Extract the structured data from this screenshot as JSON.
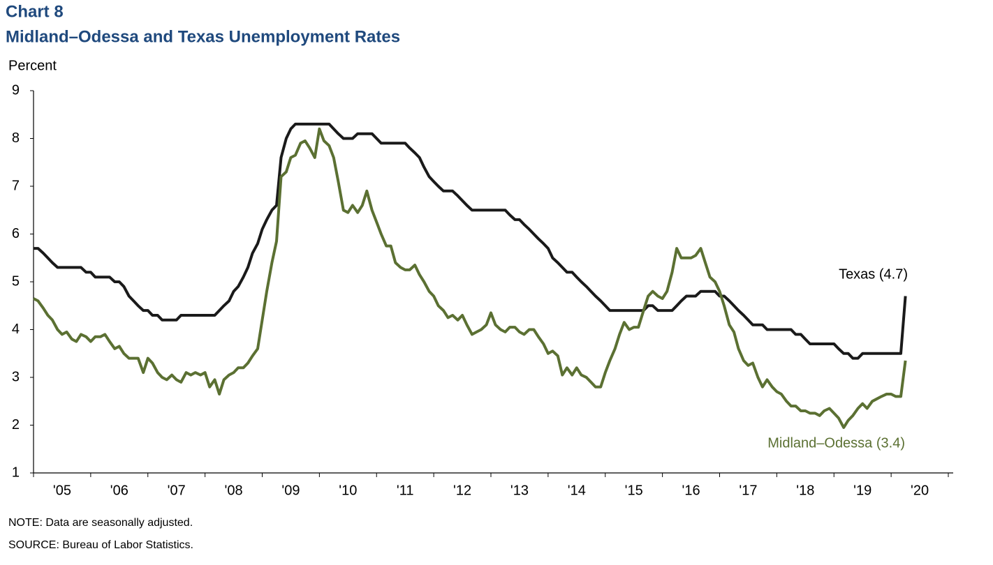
{
  "chart_data": {
    "type": "line",
    "title": "Chart 8",
    "subtitle": "Midland–Odessa and Texas Unemployment Rates",
    "y_label": "Percent",
    "notes": [
      "NOTE: Data are seasonally adjusted.",
      "SOURCE: Bureau of Labor Statistics."
    ],
    "annotations": [
      "Texas (4.7)",
      "Midland–Odessa (3.4)"
    ],
    "ylim": [
      1,
      9
    ],
    "yticks": [
      1,
      2,
      3,
      4,
      5,
      6,
      7,
      8,
      9
    ],
    "xlim": [
      2005,
      2021
    ],
    "xticks": [
      2005,
      2006,
      2007,
      2008,
      2009,
      2010,
      2011,
      2012,
      2013,
      2014,
      2015,
      2016,
      2017,
      2018,
      2019,
      2020,
      2021
    ],
    "xtick_labels": [
      {
        "value": 2005.5,
        "label": "'05"
      },
      {
        "value": 2006.5,
        "label": "'06"
      },
      {
        "value": 2007.5,
        "label": "'07"
      },
      {
        "value": 2008.5,
        "label": "'08"
      },
      {
        "value": 2009.5,
        "label": "'09"
      },
      {
        "value": 2010.5,
        "label": "'10"
      },
      {
        "value": 2011.5,
        "label": "'11"
      },
      {
        "value": 2012.5,
        "label": "'12"
      },
      {
        "value": 2013.5,
        "label": "'13"
      },
      {
        "value": 2014.5,
        "label": "'14"
      },
      {
        "value": 2015.5,
        "label": "'15"
      },
      {
        "value": 2016.5,
        "label": "'16"
      },
      {
        "value": 2017.5,
        "label": "'17"
      },
      {
        "value": 2018.5,
        "label": "'18"
      },
      {
        "value": 2019.5,
        "label": "'19"
      },
      {
        "value": 2020.5,
        "label": "'20"
      }
    ],
    "grid": false,
    "x": [
      2005.0,
      2005.08,
      2005.17,
      2005.25,
      2005.33,
      2005.42,
      2005.5,
      2005.58,
      2005.67,
      2005.75,
      2005.83,
      2005.92,
      2006.0,
      2006.08,
      2006.17,
      2006.25,
      2006.33,
      2006.42,
      2006.5,
      2006.58,
      2006.67,
      2006.75,
      2006.83,
      2006.92,
      2007.0,
      2007.08,
      2007.17,
      2007.25,
      2007.33,
      2007.42,
      2007.5,
      2007.58,
      2007.67,
      2007.75,
      2007.83,
      2007.92,
      2008.0,
      2008.08,
      2008.17,
      2008.25,
      2008.33,
      2008.42,
      2008.5,
      2008.58,
      2008.67,
      2008.75,
      2008.83,
      2008.92,
      2009.0,
      2009.08,
      2009.17,
      2009.25,
      2009.33,
      2009.42,
      2009.5,
      2009.58,
      2009.67,
      2009.75,
      2009.83,
      2009.92,
      2010.0,
      2010.08,
      2010.17,
      2010.25,
      2010.33,
      2010.42,
      2010.5,
      2010.58,
      2010.67,
      2010.75,
      2010.83,
      2010.92,
      2011.0,
      2011.08,
      2011.17,
      2011.25,
      2011.33,
      2011.42,
      2011.5,
      2011.58,
      2011.67,
      2011.75,
      2011.83,
      2011.92,
      2012.0,
      2012.08,
      2012.17,
      2012.25,
      2012.33,
      2012.42,
      2012.5,
      2012.58,
      2012.67,
      2012.75,
      2012.83,
      2012.92,
      2013.0,
      2013.08,
      2013.17,
      2013.25,
      2013.33,
      2013.42,
      2013.5,
      2013.58,
      2013.67,
      2013.75,
      2013.83,
      2013.92,
      2014.0,
      2014.08,
      2014.17,
      2014.25,
      2014.33,
      2014.42,
      2014.5,
      2014.58,
      2014.67,
      2014.75,
      2014.83,
      2014.92,
      2015.0,
      2015.08,
      2015.17,
      2015.25,
      2015.33,
      2015.42,
      2015.5,
      2015.58,
      2015.67,
      2015.75,
      2015.83,
      2015.92,
      2016.0,
      2016.08,
      2016.17,
      2016.25,
      2016.33,
      2016.42,
      2016.5,
      2016.58,
      2016.67,
      2016.75,
      2016.83,
      2016.92,
      2017.0,
      2017.08,
      2017.17,
      2017.25,
      2017.33,
      2017.42,
      2017.5,
      2017.58,
      2017.67,
      2017.75,
      2017.83,
      2017.92,
      2018.0,
      2018.08,
      2018.17,
      2018.25,
      2018.33,
      2018.42,
      2018.5,
      2018.58,
      2018.67,
      2018.75,
      2018.83,
      2018.92,
      2019.0,
      2019.08,
      2019.17,
      2019.25,
      2019.33,
      2019.42,
      2019.5,
      2019.58,
      2019.67,
      2019.75,
      2019.83,
      2019.92,
      2020.0,
      2020.08,
      2020.17,
      2020.25
    ],
    "series": [
      {
        "name": "Texas",
        "color": "#1a1a1a",
        "values": [
          5.7,
          5.7,
          5.6,
          5.5,
          5.4,
          5.3,
          5.3,
          5.3,
          5.3,
          5.3,
          5.3,
          5.2,
          5.2,
          5.1,
          5.1,
          5.1,
          5.1,
          5.0,
          5.0,
          4.9,
          4.7,
          4.6,
          4.5,
          4.4,
          4.4,
          4.3,
          4.3,
          4.2,
          4.2,
          4.2,
          4.2,
          4.3,
          4.3,
          4.3,
          4.3,
          4.3,
          4.3,
          4.3,
          4.3,
          4.4,
          4.5,
          4.6,
          4.8,
          4.9,
          5.1,
          5.3,
          5.6,
          5.8,
          6.1,
          6.3,
          6.5,
          6.6,
          7.6,
          8.0,
          8.2,
          8.3,
          8.3,
          8.3,
          8.3,
          8.3,
          8.3,
          8.3,
          8.3,
          8.2,
          8.1,
          8.0,
          8.0,
          8.0,
          8.1,
          8.1,
          8.1,
          8.1,
          8.0,
          7.9,
          7.9,
          7.9,
          7.9,
          7.9,
          7.9,
          7.8,
          7.7,
          7.6,
          7.4,
          7.2,
          7.1,
          7.0,
          6.9,
          6.9,
          6.9,
          6.8,
          6.7,
          6.6,
          6.5,
          6.5,
          6.5,
          6.5,
          6.5,
          6.5,
          6.5,
          6.5,
          6.4,
          6.3,
          6.3,
          6.2,
          6.1,
          6.0,
          5.9,
          5.8,
          5.7,
          5.5,
          5.4,
          5.3,
          5.2,
          5.2,
          5.1,
          5.0,
          4.9,
          4.8,
          4.7,
          4.6,
          4.5,
          4.4,
          4.4,
          4.4,
          4.4,
          4.4,
          4.4,
          4.4,
          4.4,
          4.5,
          4.5,
          4.4,
          4.4,
          4.4,
          4.4,
          4.5,
          4.6,
          4.7,
          4.7,
          4.7,
          4.8,
          4.8,
          4.8,
          4.8,
          4.7,
          4.7,
          4.6,
          4.5,
          4.4,
          4.3,
          4.2,
          4.1,
          4.1,
          4.1,
          4.0,
          4.0,
          4.0,
          4.0,
          4.0,
          4.0,
          3.9,
          3.9,
          3.8,
          3.7,
          3.7,
          3.7,
          3.7,
          3.7,
          3.7,
          3.6,
          3.5,
          3.5,
          3.4,
          3.4,
          3.5,
          3.5,
          3.5,
          3.5,
          3.5,
          3.5,
          3.5,
          3.5,
          3.5,
          4.7
        ]
      },
      {
        "name": "Midland–Odessa",
        "color": "#5b7032",
        "values": [
          4.65,
          4.6,
          4.45,
          4.3,
          4.2,
          4.0,
          3.9,
          3.95,
          3.8,
          3.75,
          3.9,
          3.85,
          3.75,
          3.85,
          3.85,
          3.9,
          3.75,
          3.6,
          3.65,
          3.5,
          3.4,
          3.4,
          3.4,
          3.1,
          3.4,
          3.3,
          3.1,
          3.0,
          2.95,
          3.05,
          2.95,
          2.9,
          3.1,
          3.05,
          3.1,
          3.05,
          3.1,
          2.8,
          2.95,
          2.65,
          2.95,
          3.05,
          3.1,
          3.2,
          3.2,
          3.3,
          3.45,
          3.6,
          4.2,
          4.8,
          5.4,
          5.85,
          7.2,
          7.3,
          7.6,
          7.65,
          7.9,
          7.95,
          7.8,
          7.6,
          8.2,
          7.95,
          7.85,
          7.6,
          7.1,
          6.5,
          6.45,
          6.6,
          6.45,
          6.6,
          6.9,
          6.5,
          6.25,
          6.0,
          5.75,
          5.75,
          5.4,
          5.3,
          5.25,
          5.25,
          5.35,
          5.15,
          5.0,
          4.8,
          4.7,
          4.5,
          4.4,
          4.25,
          4.3,
          4.2,
          4.3,
          4.1,
          3.9,
          3.95,
          4.0,
          4.1,
          4.35,
          4.1,
          4.0,
          3.95,
          4.05,
          4.05,
          3.95,
          3.9,
          4.0,
          4.0,
          3.85,
          3.7,
          3.5,
          3.55,
          3.45,
          3.05,
          3.2,
          3.05,
          3.2,
          3.05,
          3.0,
          2.9,
          2.8,
          2.8,
          3.1,
          3.35,
          3.6,
          3.9,
          4.15,
          4.0,
          4.05,
          4.05,
          4.4,
          4.7,
          4.8,
          4.7,
          4.65,
          4.8,
          5.2,
          5.7,
          5.5,
          5.5,
          5.5,
          5.55,
          5.7,
          5.4,
          5.1,
          5.0,
          4.8,
          4.5,
          4.1,
          3.95,
          3.6,
          3.35,
          3.25,
          3.3,
          3.0,
          2.8,
          2.95,
          2.8,
          2.7,
          2.65,
          2.5,
          2.4,
          2.4,
          2.3,
          2.3,
          2.25,
          2.25,
          2.2,
          2.3,
          2.35,
          2.25,
          2.15,
          1.95,
          2.1,
          2.2,
          2.35,
          2.45,
          2.35,
          2.5,
          2.55,
          2.6,
          2.65,
          2.65,
          2.6,
          2.6,
          3.35
        ]
      }
    ]
  }
}
